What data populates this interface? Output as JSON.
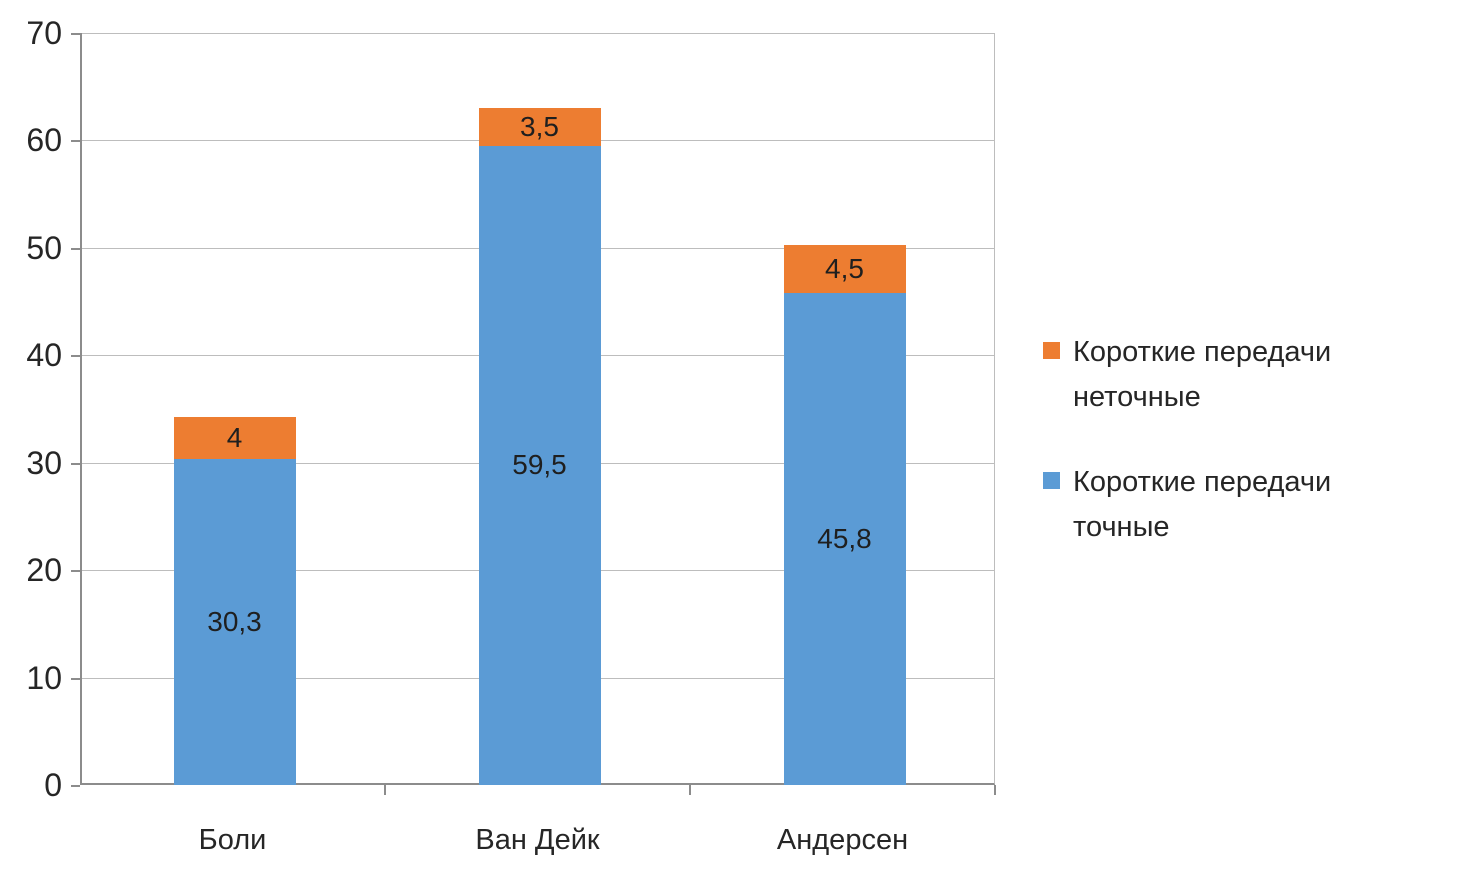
{
  "chart_data": {
    "type": "bar",
    "stacked": true,
    "title": "",
    "xlabel": "",
    "ylabel": "",
    "categories": [
      "Боли",
      "Ван Дейк",
      "Андерсен"
    ],
    "series": [
      {
        "name": "Короткие передачи точные",
        "color": "#5B9BD5",
        "values": [
          30.3,
          59.5,
          45.8
        ],
        "value_labels": [
          "30,3",
          "59,5",
          "45,8"
        ]
      },
      {
        "name": "Короткие передачи неточные",
        "color": "#ED7D31",
        "values": [
          4,
          3.5,
          4.5
        ],
        "value_labels": [
          "4",
          "3,5",
          "4,5"
        ]
      }
    ],
    "ylim": [
      0,
      70
    ],
    "yticks": [
      0,
      10,
      20,
      30,
      40,
      50,
      60,
      70
    ],
    "ytick_labels": [
      "0",
      "10",
      "20",
      "30",
      "40",
      "50",
      "60",
      "70"
    ],
    "grid": true,
    "legend_position": "right",
    "legend": [
      {
        "label": "Короткие передачи неточные",
        "color": "#ED7D31"
      },
      {
        "label": "Короткие передачи точные",
        "color": "#5B9BD5"
      }
    ]
  },
  "colors": {
    "series_blue": "#5B9BD5",
    "series_orange": "#ED7D31",
    "gridline": "#BDBDBD",
    "axis": "#8C8C8C",
    "text": "#262626",
    "background": "#FFFFFF"
  }
}
